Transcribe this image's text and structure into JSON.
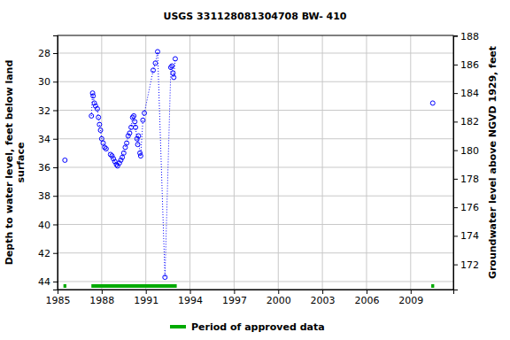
{
  "chart_data": {
    "type": "line",
    "title": "USGS 331128081304708 BW- 410",
    "y_label": [
      "Depth to water level, feet below land",
      "surface"
    ],
    "y2_label": "Groundwater level above NGVD 1929, feet",
    "x": [
      1985.5,
      null,
      1987.3,
      1987.38,
      1987.42,
      1987.5,
      1987.58,
      1987.7,
      1987.78,
      1987.85,
      1987.92,
      1988.0,
      1988.1,
      1988.2,
      1988.3,
      1988.6,
      1988.7,
      1988.8,
      1988.9,
      1989.0,
      1989.08,
      1989.2,
      1989.3,
      1989.4,
      1989.5,
      1989.6,
      1989.7,
      1989.8,
      1989.9,
      1990.0,
      1990.1,
      1990.18,
      1990.25,
      1990.3,
      1990.4,
      1990.45,
      1990.5,
      1990.6,
      1990.65,
      1990.8,
      1990.9,
      1991.5,
      1991.65,
      1991.8,
      1992.3,
      1992.7,
      1992.78,
      1992.85,
      1992.9,
      1993.0,
      null,
      2010.5
    ],
    "series": [
      {
        "color": "#0000ff",
        "marker": "circle_open",
        "line_style": "dotted",
        "values": [
          35.5,
          null,
          32.4,
          30.8,
          31.0,
          31.5,
          31.7,
          31.9,
          32.5,
          33.0,
          33.4,
          34.0,
          34.3,
          34.6,
          34.7,
          35.1,
          35.2,
          35.4,
          35.6,
          35.8,
          35.9,
          35.7,
          35.5,
          35.3,
          35.0,
          34.6,
          34.3,
          33.8,
          33.6,
          33.2,
          32.5,
          32.4,
          32.8,
          33.2,
          34.0,
          34.4,
          33.8,
          35.0,
          35.2,
          32.7,
          32.2,
          29.2,
          28.7,
          27.9,
          43.7,
          29.0,
          28.9,
          29.4,
          29.7,
          28.4,
          null,
          31.5
        ]
      }
    ],
    "xlim": [
      1985,
      2011.9
    ],
    "xticks": [
      1985,
      1988,
      1991,
      1994,
      1997,
      2000,
      2003,
      2006,
      2009
    ],
    "ylim": [
      26.76,
      44.56
    ],
    "yticks": [
      28,
      30,
      32,
      34,
      36,
      38,
      40,
      42,
      44
    ],
    "y2lim": [
      170.24,
      188.04
    ],
    "y2ticks": [
      172,
      174,
      176,
      178,
      180,
      182,
      184,
      186,
      188
    ],
    "grid": true,
    "approved_periods": [
      [
        1985.4,
        1985.6
      ],
      [
        1987.3,
        1993.1
      ],
      [
        2010.4,
        2010.6
      ]
    ],
    "approved_label": "Period of approved data",
    "approved_color": "#00aa00",
    "legend": "bottom"
  }
}
